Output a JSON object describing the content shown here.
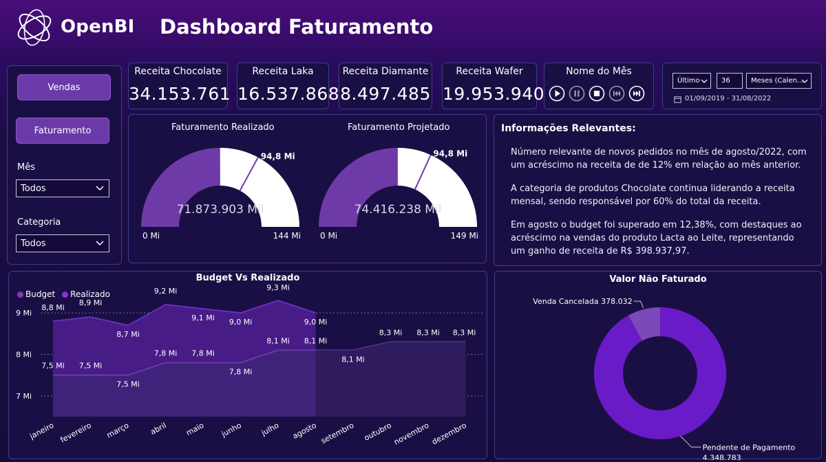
{
  "header": {
    "brand": "OpenBI",
    "title": "Dashboard Faturamento"
  },
  "sidebar": {
    "btn_vendas": "Vendas",
    "btn_faturamento": "Faturamento",
    "mes_label": "Mês",
    "mes_value": "Todos",
    "categoria_label": "Categoria",
    "categoria_value": "Todos"
  },
  "kpis": [
    {
      "label": "Receita Chocolate",
      "value": "34.153.761"
    },
    {
      "label": "Receita Laka",
      "value": "16.537.868"
    },
    {
      "label": "Receita Diamante",
      "value": "8.497.485"
    },
    {
      "label": "Receita Wafer",
      "value": "19.953.940"
    }
  ],
  "player": {
    "title": "Nome do Mês"
  },
  "date_filter": {
    "mode": "Último",
    "count": "36",
    "unit": "Meses (Calen...",
    "range": "01/09/2019 - 31/08/2022"
  },
  "gauges": [
    {
      "title": "Faturamento Realizado",
      "value_label": "71.873.903 Mil",
      "target_label": "94,8 Mi",
      "min_label": "0 Mi",
      "max_label": "144 Mi",
      "value": 71.87,
      "target": 94.8,
      "max": 144
    },
    {
      "title": "Faturamento Projetado",
      "value_label": "74.416.238 Mil",
      "target_label": "94,8 Mi",
      "min_label": "0 Mi",
      "max_label": "149 Mi",
      "value": 74.42,
      "target": 94.8,
      "max": 149
    }
  ],
  "info": {
    "title": "Informações Relevantes:",
    "paragraphs": [
      "Número relevante de novos pedidos no mês de agosto/2022, com um acréscimo na receita de de 12% em relação ao mês anterior.",
      "A categoria de produtos Chocolate continua liderando a receita mensal, sendo responsável por 60% do total da receita.",
      "Em agosto o budget foi superado em 12,38%, com destaques ao acréscimo na vendas do produto Lacta ao Leite, representando um ganho de receita de R$ 398.937,97."
    ]
  },
  "colors": {
    "budget": "#7b3fb0",
    "realizado": "#8b2ed8",
    "gauge_fill": "#6e3aa8",
    "donut_main": "#6a1bc8",
    "donut_small": "#7a4bb8"
  },
  "chart_data": [
    {
      "type": "area",
      "title": "Budget Vs Realizado",
      "legend": [
        "Budget",
        "Realizado"
      ],
      "legend_position": "top-left",
      "categories": [
        "janeiro",
        "fevereiro",
        "março",
        "abril",
        "maio",
        "junho",
        "julho",
        "agosto",
        "setembro",
        "outubro",
        "novembro",
        "dezembro"
      ],
      "y_ticks": [
        7,
        8,
        9
      ],
      "y_tick_labels": [
        "7 Mi",
        "8 Mi",
        "9 Mi"
      ],
      "ylim": [
        6.5,
        9.3
      ],
      "series": [
        {
          "name": "Realizado",
          "values": [
            8.8,
            8.9,
            8.7,
            9.2,
            9.1,
            9.0,
            9.3,
            9.0,
            null,
            null,
            null,
            null
          ],
          "labels": [
            "8,8 Mi",
            "8,9 Mi",
            "8,7 Mi",
            "9,2 Mi",
            "9,1 Mi",
            "9,0 Mi",
            "9,3 Mi",
            "9,0 Mi",
            "",
            "",
            "",
            ""
          ]
        },
        {
          "name": "Budget",
          "values": [
            7.5,
            7.5,
            7.5,
            7.8,
            7.8,
            7.8,
            8.1,
            8.1,
            8.1,
            8.3,
            8.3,
            8.3
          ],
          "labels": [
            "7,5 Mi",
            "7,5 Mi",
            "7,5 Mi",
            "7,8 Mi",
            "7,8 Mi",
            "7,8 Mi",
            "8,1 Mi",
            "8,1 Mi",
            "8,1 Mi",
            "8,3 Mi",
            "8,3 Mi",
            "8,3 Mi"
          ]
        }
      ]
    },
    {
      "type": "pie",
      "title": "Valor Não Faturado",
      "slices": [
        {
          "name": "Venda Cancelada",
          "value": 378032,
          "label": "Venda Cancelada 378.032"
        },
        {
          "name": "Pendente de Pagamento",
          "value": 4348783,
          "label_line1": "Pendente de Pagamento",
          "label_line2": "4.348.783"
        }
      ]
    }
  ]
}
